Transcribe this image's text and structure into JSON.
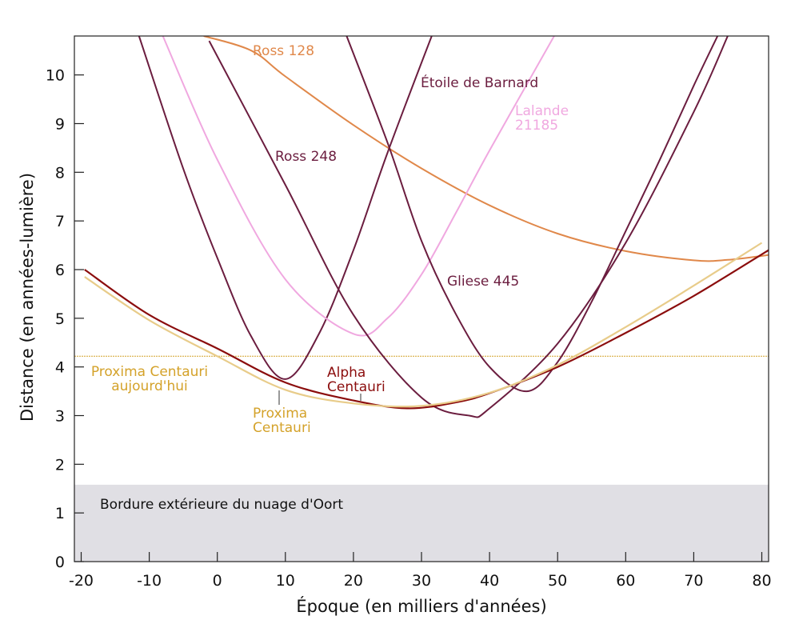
{
  "chart_data": {
    "type": "line",
    "title": "",
    "xlabel": "Époque (en milliers d'années)",
    "ylabel": "Distance (en années-lumière)",
    "xlim": [
      -21,
      81
    ],
    "ylim": [
      0,
      10.8
    ],
    "x_ticks": [
      -20,
      -10,
      0,
      10,
      20,
      30,
      40,
      50,
      60,
      70,
      80
    ],
    "x_tick_labels": [
      "-20",
      "-10",
      "0",
      "10",
      "20",
      "30",
      "40",
      "50",
      "60",
      "70",
      "80"
    ],
    "y_ticks": [
      0,
      1,
      2,
      3,
      4,
      5,
      6,
      7,
      8,
      9,
      10
    ],
    "y_tick_labels": [
      "0",
      "1",
      "2",
      "3",
      "4",
      "5",
      "6",
      "7",
      "8",
      "9",
      "10"
    ],
    "grid": false,
    "oort": {
      "ymax": 1.58,
      "color": "#e0dfe4",
      "label": "Bordure extérieure du nuage d'Oort"
    },
    "reference_line": {
      "y": 4.22,
      "color": "#d4a22a",
      "label_lines": [
        "Proxima Centauri",
        "aujourd'hui"
      ]
    },
    "series": [
      {
        "name": "Ross 128",
        "label_lines": [
          "Ross 128"
        ],
        "color": "#e0884a",
        "x": [
          -2,
          5,
          10,
          20,
          30,
          40,
          50,
          60,
          70,
          75,
          81
        ],
        "y": [
          10.8,
          10.5,
          9.97,
          8.97,
          8.08,
          7.32,
          6.74,
          6.38,
          6.19,
          6.2,
          6.3
        ]
      },
      {
        "name": "Étoile de Barnard",
        "label_lines": [
          "Étoile de Barnard"
        ],
        "color": "#6b1d3f",
        "x": [
          -11.5,
          -5,
          0,
          5,
          10,
          15,
          20,
          25,
          31.5
        ],
        "y": [
          10.8,
          8.07,
          6.24,
          4.62,
          3.75,
          4.7,
          6.4,
          8.4,
          10.8
        ]
      },
      {
        "name": "Lalande 21185",
        "label_lines": [
          "Lalande",
          "21185"
        ],
        "color": "#f0a8e0",
        "x": [
          -8,
          0,
          10,
          20,
          25,
          30,
          35,
          40,
          49.5
        ],
        "y": [
          10.8,
          8.26,
          5.8,
          4.68,
          5.0,
          5.9,
          7.15,
          8.45,
          10.8
        ]
      },
      {
        "name": "Ross 248",
        "label_lines": [
          "Ross 248"
        ],
        "color": "#6b1d3f",
        "x": [
          -1.2,
          10,
          20,
          30,
          37,
          40,
          50,
          60,
          70,
          75
        ],
        "y": [
          10.7,
          7.74,
          5.07,
          3.37,
          3.0,
          3.15,
          4.48,
          6.55,
          9.24,
          10.8
        ]
      },
      {
        "name": "Gliese 445",
        "label_lines": [
          "Gliese 445"
        ],
        "color": "#6b1d3f",
        "x": [
          19,
          25,
          30,
          35,
          40,
          45.5,
          50,
          55,
          60,
          65,
          70,
          73.5
        ],
        "y": [
          10.8,
          8.61,
          6.59,
          5.1,
          4.0,
          3.5,
          4.1,
          5.34,
          6.79,
          8.25,
          9.78,
          10.8
        ]
      },
      {
        "name": "Alpha Centauri",
        "label_lines": [
          "Alpha",
          "Centauri"
        ],
        "color": "#8b0d0d",
        "x": [
          -19.5,
          -10,
          0,
          10,
          20,
          28,
          35,
          40,
          50,
          60,
          70,
          81
        ],
        "y": [
          6.0,
          5.07,
          4.38,
          3.68,
          3.31,
          3.15,
          3.27,
          3.46,
          4.0,
          4.7,
          5.46,
          6.4
        ]
      },
      {
        "name": "Proxima Centauri",
        "label_lines": [
          "Proxima",
          "Centauri"
        ],
        "color": "#e8cc8a",
        "x": [
          -19.5,
          -10,
          0,
          10,
          20,
          30,
          40,
          50,
          60,
          70,
          80
        ],
        "y": [
          5.85,
          4.96,
          4.22,
          3.53,
          3.25,
          3.2,
          3.47,
          4.04,
          4.82,
          5.67,
          6.55
        ]
      }
    ]
  }
}
